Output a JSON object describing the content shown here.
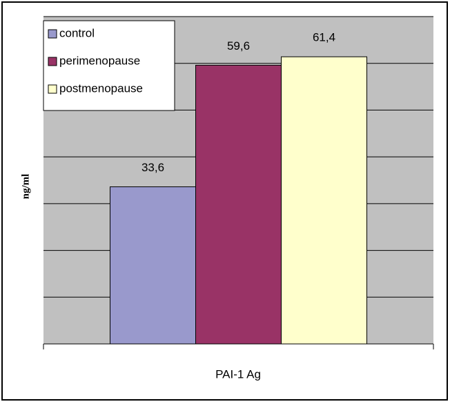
{
  "chart_data": {
    "type": "bar",
    "y_label": "ng/ml",
    "x_label": "PAI-1 Ag",
    "categories": [
      "PAI-1 Ag"
    ],
    "series": [
      {
        "name": "control",
        "color": "#9999cc",
        "values": [
          33.6
        ],
        "value_labels": [
          "33,6"
        ]
      },
      {
        "name": "perimenopause",
        "color": "#993366",
        "values": [
          59.6
        ],
        "value_labels": [
          "59,6"
        ]
      },
      {
        "name": "postmenopause",
        "color": "#ffffcc",
        "values": [
          61.4
        ],
        "value_labels": [
          "61,4"
        ]
      }
    ],
    "ylim": [
      0,
      70
    ],
    "yticks": [
      0,
      10,
      20,
      30,
      40,
      50,
      60,
      70
    ],
    "grid": true,
    "legend": "top-left"
  }
}
